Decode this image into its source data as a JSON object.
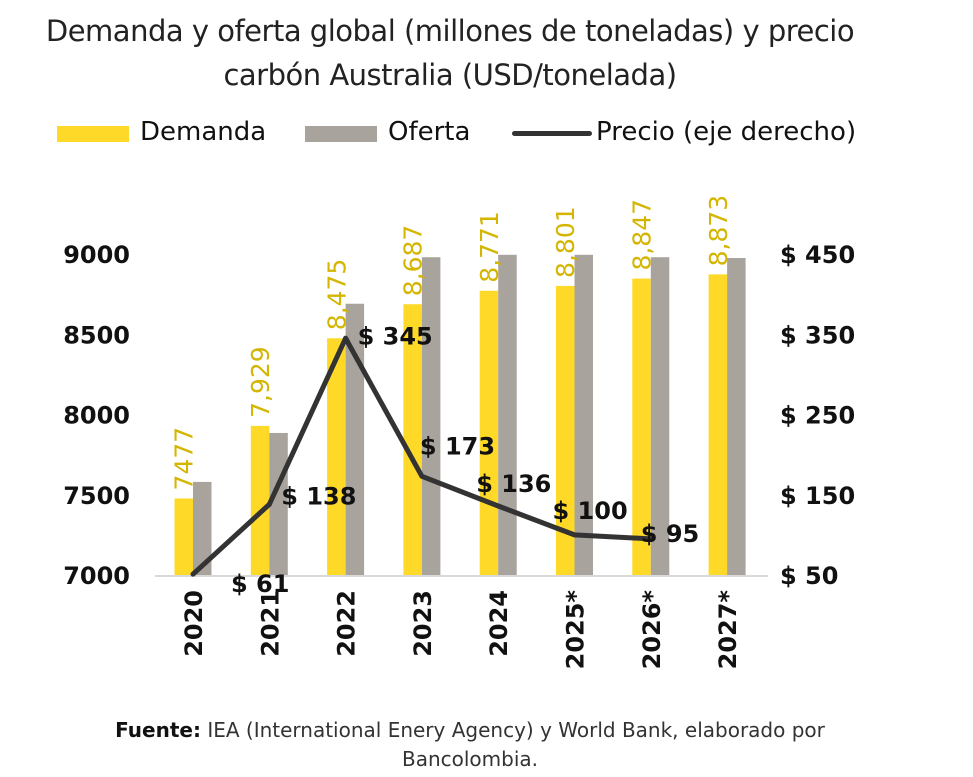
{
  "title_line1": "Demanda y oferta global (millones de toneladas) y precio",
  "title_line2": "carbón Australia (USD/tonelada)",
  "legend": {
    "demanda": "Demanda",
    "oferta": "Oferta",
    "precio": "Precio (eje derecho)"
  },
  "source": {
    "label": "Fuente:",
    "text": "IEA (International Enery Agency) y World Bank, elaborado por",
    "text2": "Bancolombia."
  },
  "colors": {
    "demanda": "#FFD928",
    "oferta": "#A9A39D",
    "precio": "#333333",
    "demanda_label": "#D4B500"
  },
  "chart_data": {
    "type": "bar+line",
    "categories": [
      "2020",
      "2021",
      "2022",
      "2023",
      "2024",
      "2025*",
      "2026*",
      "2027*"
    ],
    "series": [
      {
        "name": "Demanda",
        "axis": "left",
        "values": [
          7477,
          7929,
          8475,
          8687,
          8771,
          8801,
          8847,
          8873
        ],
        "labels": [
          "7477",
          "7,929",
          "8,475",
          "8,687",
          "8,771",
          "8,801",
          "8,847",
          "8,873"
        ]
      },
      {
        "name": "Oferta",
        "axis": "left",
        "values": [
          7580,
          7885,
          8690,
          8980,
          8995,
          8995,
          8980,
          8975
        ]
      },
      {
        "name": "Precio (eje derecho)",
        "axis": "right",
        "type": "line",
        "values": [
          61,
          138,
          345,
          173,
          136,
          100,
          95,
          null
        ],
        "labels": [
          "$ 61",
          "$ 138",
          "$ 345",
          "$ 173",
          "$ 136",
          "$ 100",
          "$ 95",
          ""
        ]
      }
    ],
    "y_left": {
      "range": [
        7000,
        9000
      ],
      "ticks": [
        "7000",
        "7500",
        "8000",
        "8500",
        "9000"
      ]
    },
    "y_right": {
      "range": [
        50,
        450
      ],
      "ticks": [
        "$ 50",
        "$ 150",
        "$ 250",
        "$ 350",
        "$ 450"
      ]
    },
    "grid": false,
    "legend_position": "top"
  }
}
